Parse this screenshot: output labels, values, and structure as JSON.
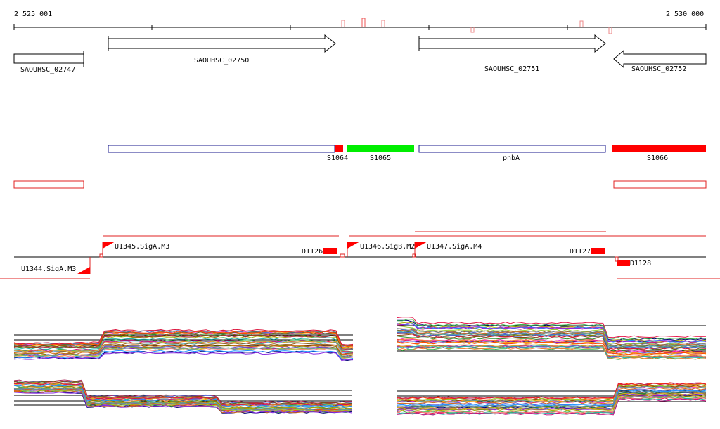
{
  "ruler": {
    "start_label": "2 525 001",
    "end_label": "2 530 000"
  },
  "genes": [
    {
      "label": "SAOUHSC_02747",
      "strand": "+"
    },
    {
      "label": "SAOUHSC_02750",
      "strand": "+"
    },
    {
      "label": "SAOUHSC_02751",
      "strand": "+"
    },
    {
      "label": "SAOUHSC_02752",
      "strand": "-"
    }
  ],
  "segments": [
    {
      "label": "S1064",
      "color": "#ff0000"
    },
    {
      "label": "S1065",
      "color": "#00ee00"
    },
    {
      "label": "pnbA",
      "color": "#ffffff"
    },
    {
      "label": "S1066",
      "color": "#ff0000"
    }
  ],
  "promoters": [
    {
      "label": "U1344.SigA.M3"
    },
    {
      "label": "U1345.SigA.M3"
    },
    {
      "label": "U1346.SigB.M2"
    },
    {
      "label": "U1347.SigA.M4"
    }
  ],
  "terminators": [
    {
      "label": "D1126"
    },
    {
      "label": "D1127"
    },
    {
      "label": "D1128"
    }
  ],
  "colors": {
    "gene_outline": "#000000",
    "segment_outline": "#1a1a8c",
    "feature_red": "#ff0000",
    "track_line": "#000000"
  },
  "expression_panels": [
    {
      "id": "top-left"
    },
    {
      "id": "top-right"
    },
    {
      "id": "bottom-left"
    },
    {
      "id": "bottom-right"
    }
  ]
}
